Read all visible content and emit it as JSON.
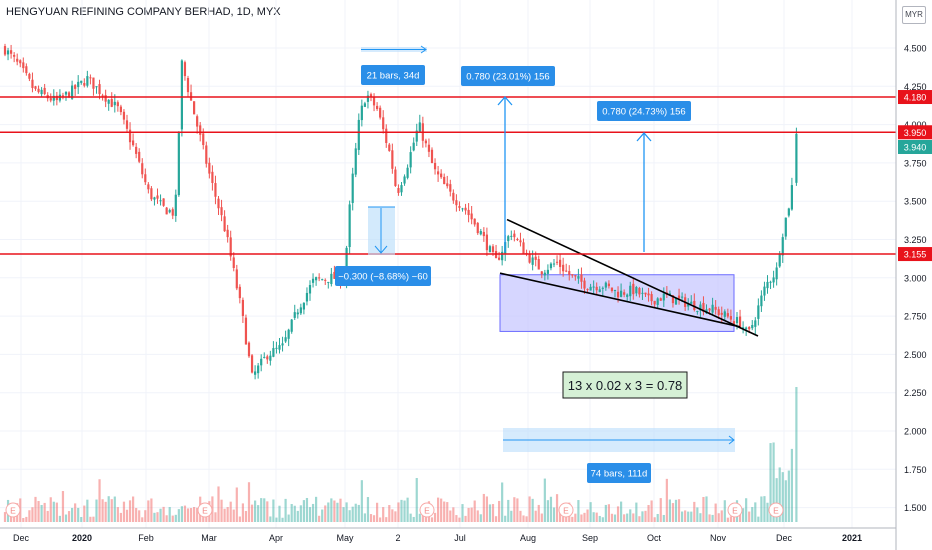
{
  "header": {
    "title": "HENGYUAN REFINING COMPANY BERHAD, 1D, MYX",
    "currency": "MYR"
  },
  "colors": {
    "up": "#26a69a",
    "down": "#ef5350",
    "resistance": "#e8121b",
    "measure_blue": "#2196f3",
    "label_bg": "#2a8ee8",
    "box_fill": "#c8c8ff",
    "box_stroke": "#6b6bff",
    "formula_bg": "#d5f0d5",
    "last_price_bg": "#26a69a"
  },
  "chart_data": {
    "type": "candlestick",
    "title": "HENGYUAN REFINING COMPANY BERHAD, 1D, MYX",
    "x_tick_labels": [
      "Dec",
      "2020",
      "Feb",
      "Mar",
      "Apr",
      "May",
      "2",
      "Jul",
      "Aug",
      "Sep",
      "Oct",
      "Nov",
      "Dec",
      "2021"
    ],
    "y_tick_labels": [
      "4.500",
      "4.250",
      "4.000",
      "3.750",
      "3.500",
      "3.250",
      "3.000",
      "2.750",
      "2.500",
      "2.250",
      "2.000",
      "1.750",
      "1.500"
    ],
    "ylim": [
      1.38,
      4.58
    ],
    "price_path_approx": [
      [
        "2019-12-02",
        4.5
      ],
      [
        "2019-12-09",
        4.38
      ],
      [
        "2019-12-16",
        4.22
      ],
      [
        "2019-12-26",
        4.15
      ],
      [
        "2020-01-02",
        4.22
      ],
      [
        "2020-01-09",
        4.3
      ],
      [
        "2020-01-16",
        4.2
      ],
      [
        "2020-01-23",
        4.1
      ],
      [
        "2020-01-30",
        3.85
      ],
      [
        "2020-02-06",
        3.55
      ],
      [
        "2020-02-13",
        3.45
      ],
      [
        "2020-02-18",
        3.42
      ],
      [
        "2020-02-21",
        4.4
      ],
      [
        "2020-02-27",
        4.05
      ],
      [
        "2020-03-05",
        3.65
      ],
      [
        "2020-03-12",
        3.3
      ],
      [
        "2020-03-19",
        2.8
      ],
      [
        "2020-03-24",
        2.35
      ],
      [
        "2020-03-31",
        2.5
      ],
      [
        "2020-04-07",
        2.55
      ],
      [
        "2020-04-14",
        2.8
      ],
      [
        "2020-04-21",
        2.98
      ],
      [
        "2020-04-28",
        3.0
      ],
      [
        "2020-05-05",
        3.0
      ],
      [
        "2020-05-08",
        3.55
      ],
      [
        "2020-05-12",
        4.05
      ],
      [
        "2020-05-15",
        4.2
      ],
      [
        "2020-05-20",
        4.1
      ],
      [
        "2020-05-26",
        3.8
      ],
      [
        "2020-05-29",
        3.55
      ],
      [
        "2020-06-03",
        3.75
      ],
      [
        "2020-06-08",
        4.0
      ],
      [
        "2020-06-15",
        3.7
      ],
      [
        "2020-06-22",
        3.55
      ],
      [
        "2020-06-29",
        3.45
      ],
      [
        "2020-07-06",
        3.3
      ],
      [
        "2020-07-13",
        3.1
      ],
      [
        "2020-07-20",
        3.3
      ],
      [
        "2020-07-27",
        3.15
      ],
      [
        "2020-08-03",
        3.05
      ],
      [
        "2020-08-10",
        3.1
      ],
      [
        "2020-08-17",
        3.0
      ],
      [
        "2020-08-24",
        2.95
      ],
      [
        "2020-08-31",
        2.95
      ],
      [
        "2020-09-07",
        2.9
      ],
      [
        "2020-09-14",
        2.92
      ],
      [
        "2020-09-21",
        2.85
      ],
      [
        "2020-09-28",
        2.88
      ],
      [
        "2020-10-05",
        2.85
      ],
      [
        "2020-10-12",
        2.82
      ],
      [
        "2020-10-19",
        2.8
      ],
      [
        "2020-10-26",
        2.75
      ],
      [
        "2020-11-02",
        2.7
      ],
      [
        "2020-11-05",
        2.62
      ],
      [
        "2020-11-09",
        2.78
      ],
      [
        "2020-11-13",
        2.95
      ],
      [
        "2020-11-18",
        3.05
      ],
      [
        "2020-11-20",
        3.25
      ],
      [
        "2020-11-24",
        3.5
      ],
      [
        "2020-11-26",
        3.7
      ],
      [
        "2020-11-27",
        3.94
      ]
    ],
    "last_price": "3.940",
    "horizontal_levels": [
      {
        "value": 4.18,
        "label": "4.180"
      },
      {
        "value": 3.95,
        "label": "3.950"
      },
      {
        "value": 3.155,
        "label": "3.155"
      }
    ],
    "volume_markers": [
      "E",
      "E",
      "E",
      "E",
      "E",
      "E"
    ],
    "annotations": {
      "date_range_top": "21 bars, 34d",
      "drop_measure": "−0.300 (−8.68%) −60",
      "measure_1": "0.780 (23.01%) 156",
      "measure_2": "0.780 (24.73%) 156",
      "formula": "13 x 0.02 x 3 = 0.78",
      "date_range_bottom": "74 bars, 111d"
    }
  }
}
